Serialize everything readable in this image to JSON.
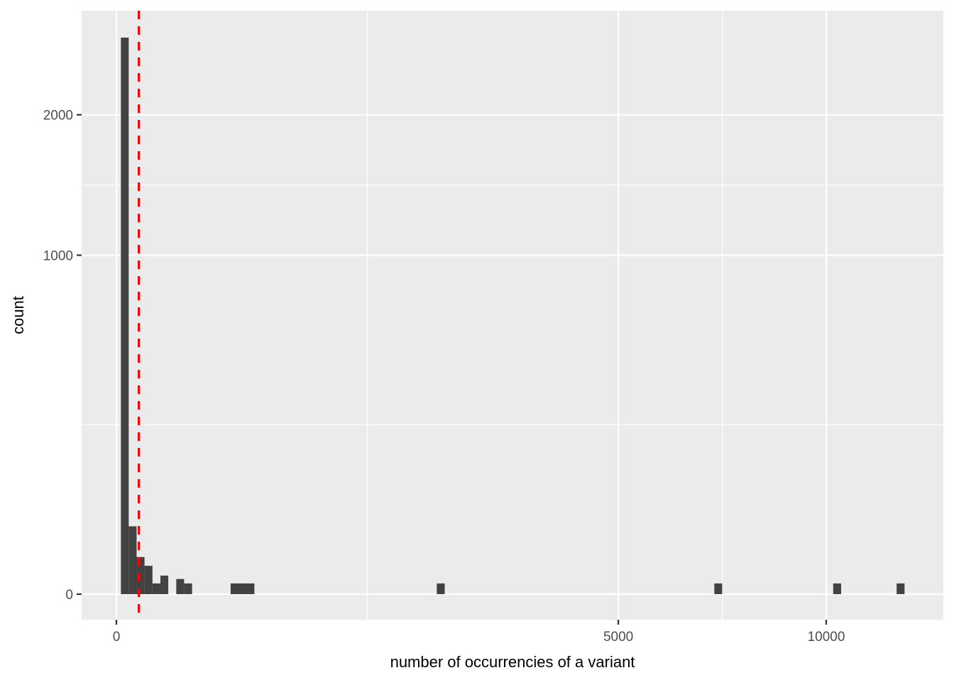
{
  "chart_data": {
    "type": "bar",
    "subtype": "histogram",
    "title": "",
    "xlabel": "number of occurrencies of a variant",
    "ylabel": "count",
    "x_scale": "sqrt",
    "y_scale": "sqrt",
    "x_domain": [
      0,
      13572
    ],
    "y_domain": [
      0,
      2963
    ],
    "grid": "on",
    "legend_position": "none",
    "x_ticks": [
      {
        "value": 0,
        "label": "0"
      },
      {
        "value": 5000,
        "label": "5000"
      },
      {
        "value": 10000,
        "label": "10000"
      }
    ],
    "y_ticks": [
      {
        "value": 0,
        "label": "0"
      },
      {
        "value": 1000,
        "label": "1000"
      },
      {
        "value": 2000,
        "label": "2000"
      }
    ],
    "x_minor_gridlines": [
      1250,
      7286
    ],
    "y_minor_gridlines": [
      250,
      1457
    ],
    "bars": [
      {
        "x0": 0.4,
        "x1": 3.0,
        "count": 2696
      },
      {
        "x0": 3.0,
        "x1": 8.1,
        "count": 40
      },
      {
        "x0": 8.1,
        "x1": 15.7,
        "count": 12
      },
      {
        "x0": 15.7,
        "x1": 25.8,
        "count": 7
      },
      {
        "x0": 25.8,
        "x1": 38.4,
        "count": 1
      },
      {
        "x0": 38.4,
        "x1": 53.4,
        "count": 3
      },
      {
        "x0": 71.1,
        "x1": 91.0,
        "count": 2
      },
      {
        "x0": 91.0,
        "x1": 113.6,
        "count": 1
      },
      {
        "x0": 258.9,
        "x1": 377.9,
        "count": 1
      },
      {
        "x0": 2037,
        "x1": 2139,
        "count": 1
      },
      {
        "x0": 7095,
        "x1": 7283,
        "count": 1
      },
      {
        "x0": 10197,
        "x1": 10424,
        "count": 1
      },
      {
        "x0": 12082,
        "x1": 12328,
        "count": 1
      }
    ],
    "vline": {
      "x": 10,
      "style": "dashed"
    },
    "colors": {
      "bar": "#424242",
      "panel_background": "#ebebeb",
      "gridline": "#ffffff",
      "tick_text": "#4d4d4d",
      "tick_mark": "#333333",
      "axis_title": "#000000",
      "vline": "#ff0000",
      "outer_background": "#ffffff"
    }
  }
}
